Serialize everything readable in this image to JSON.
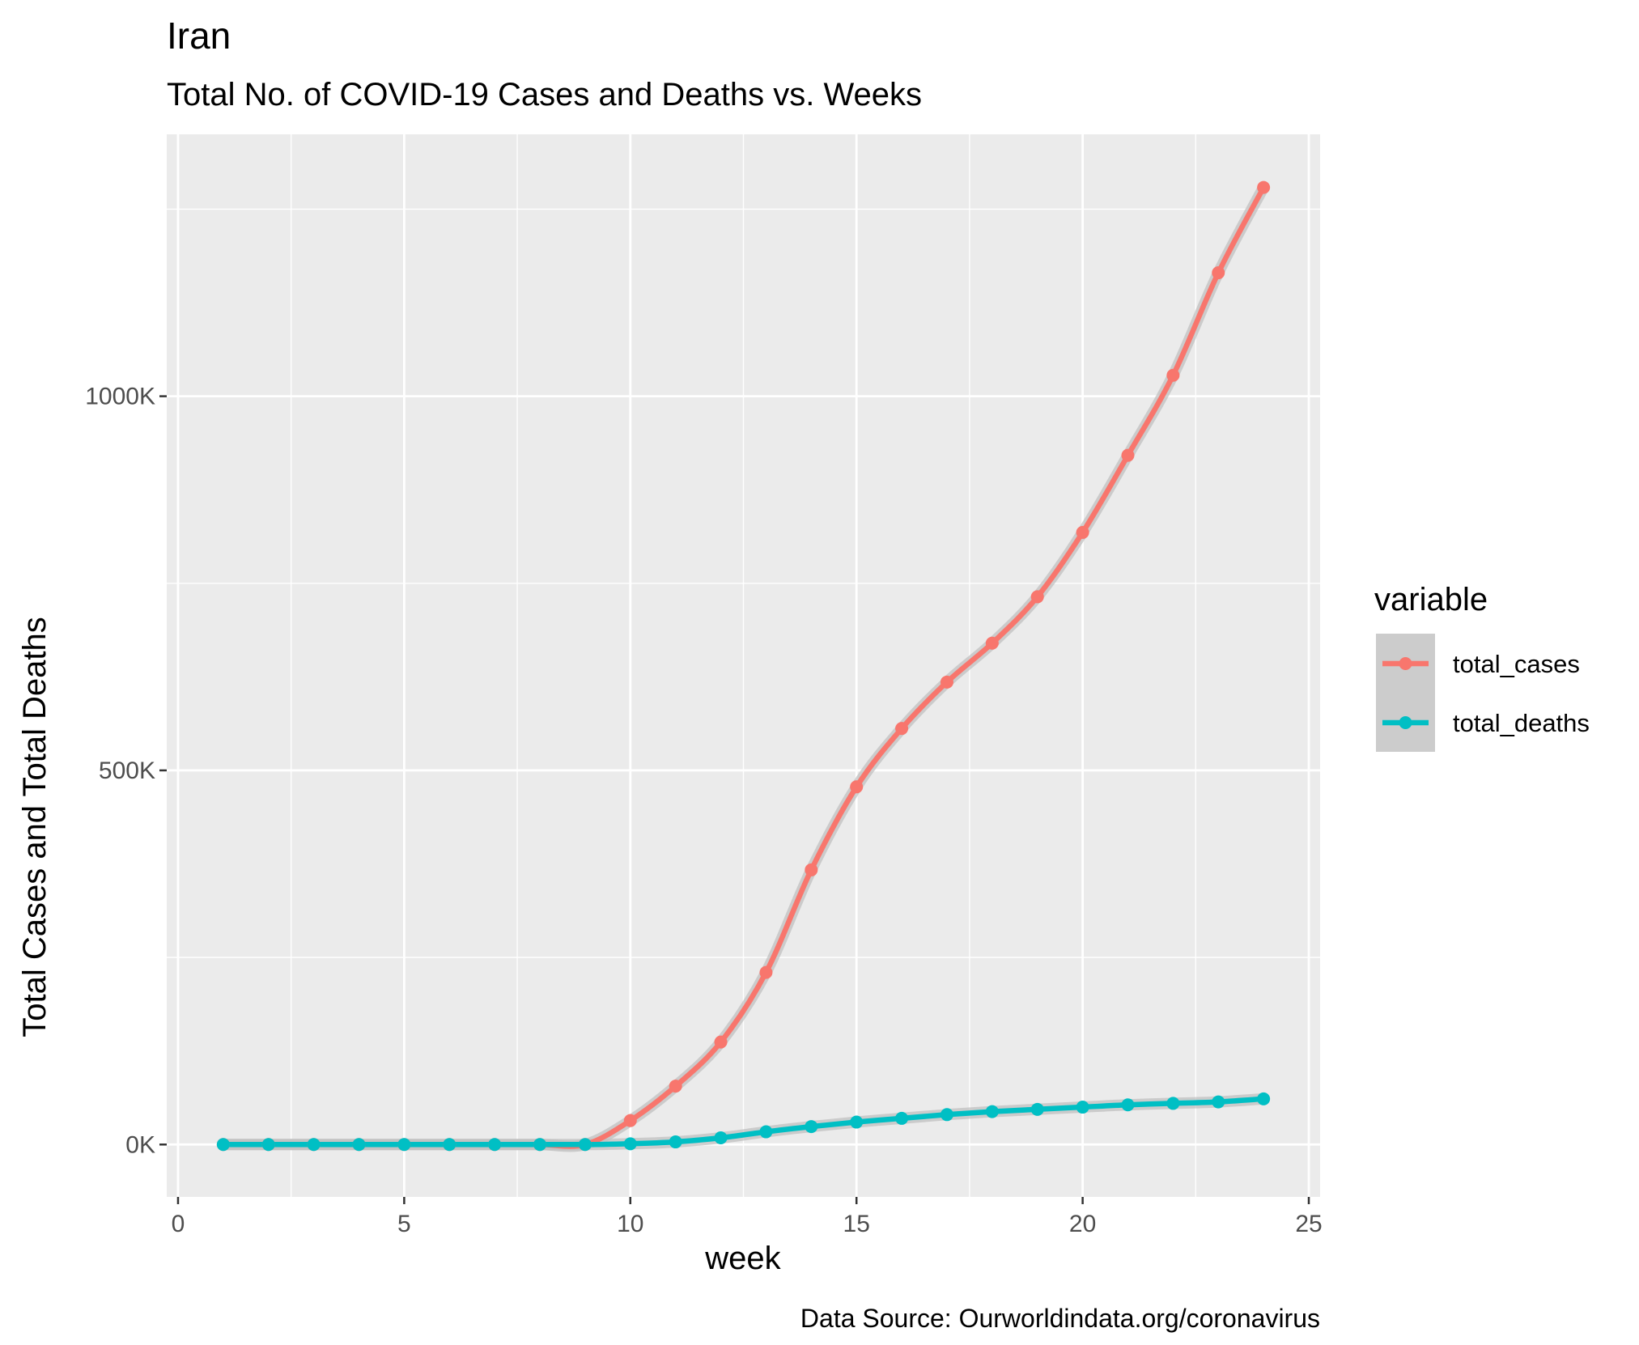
{
  "chart_data": {
    "type": "line",
    "title": "Iran",
    "subtitle": "Total No. of COVID-19 Cases and Deaths vs. Weeks",
    "xlabel": "week",
    "ylabel": "Total Cases and Total Deaths",
    "caption": "Data Source: Ourworldindata.org/coronavirus",
    "xlim": [
      -0.25,
      25.25
    ],
    "ylim": [
      -70000,
      1350000
    ],
    "x_ticks": [
      0,
      5,
      10,
      15,
      20,
      25
    ],
    "x_tick_labels": [
      "0",
      "5",
      "10",
      "15",
      "20",
      "25"
    ],
    "y_ticks": [
      0,
      500000,
      1000000
    ],
    "y_tick_labels": [
      "0K",
      "500K",
      "1000K"
    ],
    "grid": true,
    "smoothed": true,
    "legend": {
      "title": "variable",
      "position": "right",
      "entries": [
        "total_cases",
        "total_deaths"
      ]
    },
    "x": [
      1,
      2,
      3,
      4,
      5,
      6,
      7,
      8,
      9,
      10,
      11,
      12,
      13,
      14,
      15,
      16,
      17,
      18,
      19,
      20,
      21,
      22,
      23,
      24
    ],
    "series": [
      {
        "name": "total_cases",
        "color": "#F8766D",
        "values": [
          0,
          0,
          0,
          0,
          0,
          0,
          0,
          0,
          0,
          32000,
          78000,
          137000,
          230000,
          367000,
          478000,
          556000,
          618000,
          670000,
          732000,
          818000,
          921000,
          1028000,
          1165000,
          1279000
        ]
      },
      {
        "name": "total_deaths",
        "color": "#00BFC4",
        "values": [
          0,
          0,
          0,
          0,
          0,
          0,
          0,
          0,
          0,
          1000,
          3500,
          9000,
          17000,
          24000,
          30000,
          35000,
          40000,
          44000,
          47000,
          50000,
          53000,
          55000,
          57000,
          61000
        ]
      }
    ]
  }
}
